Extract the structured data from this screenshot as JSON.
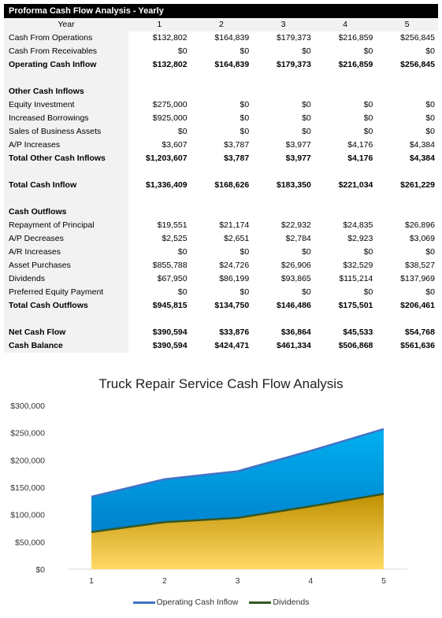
{
  "table": {
    "title": "Proforma Cash Flow Analysis - Yearly",
    "header": [
      "Year",
      "1",
      "2",
      "3",
      "4",
      "5"
    ],
    "rows": [
      {
        "label": "Cash From Operations",
        "values": [
          "$132,802",
          "$164,839",
          "$179,373",
          "$216,859",
          "$256,845"
        ],
        "style": "normal"
      },
      {
        "label": "Cash From Receivables",
        "values": [
          "$0",
          "$0",
          "$0",
          "$0",
          "$0"
        ],
        "style": "normal"
      },
      {
        "label": "Operating Cash Inflow",
        "values": [
          "$132,802",
          "$164,839",
          "$179,373",
          "$216,859",
          "$256,845"
        ],
        "style": "bold"
      },
      {
        "label": "",
        "values": [
          "",
          "",
          "",
          "",
          ""
        ],
        "style": "blank"
      },
      {
        "label": "Other Cash Inflows",
        "values": [
          "",
          "",
          "",
          "",
          ""
        ],
        "style": "section"
      },
      {
        "label": "Equity Investment",
        "values": [
          "$275,000",
          "$0",
          "$0",
          "$0",
          "$0"
        ],
        "style": "normal"
      },
      {
        "label": "Increased Borrowings",
        "values": [
          "$925,000",
          "$0",
          "$0",
          "$0",
          "$0"
        ],
        "style": "normal"
      },
      {
        "label": "Sales of Business Assets",
        "values": [
          "$0",
          "$0",
          "$0",
          "$0",
          "$0"
        ],
        "style": "normal"
      },
      {
        "label": "A/P Increases",
        "values": [
          "$3,607",
          "$3,787",
          "$3,977",
          "$4,176",
          "$4,384"
        ],
        "style": "normal"
      },
      {
        "label": "Total Other Cash Inflows",
        "values": [
          "$1,203,607",
          "$3,787",
          "$3,977",
          "$4,176",
          "$4,384"
        ],
        "style": "bold"
      },
      {
        "label": "",
        "values": [
          "",
          "",
          "",
          "",
          ""
        ],
        "style": "blank"
      },
      {
        "label": "Total Cash Inflow",
        "values": [
          "$1,336,409",
          "$168,626",
          "$183,350",
          "$221,034",
          "$261,229"
        ],
        "style": "bold"
      },
      {
        "label": "",
        "values": [
          "",
          "",
          "",
          "",
          ""
        ],
        "style": "blank"
      },
      {
        "label": "Cash Outflows",
        "values": [
          "",
          "",
          "",
          "",
          ""
        ],
        "style": "section"
      },
      {
        "label": "Repayment of Principal",
        "values": [
          "$19,551",
          "$21,174",
          "$22,932",
          "$24,835",
          "$26,896"
        ],
        "style": "normal"
      },
      {
        "label": "A/P Decreases",
        "values": [
          "$2,525",
          "$2,651",
          "$2,784",
          "$2,923",
          "$3,069"
        ],
        "style": "normal"
      },
      {
        "label": "A/R Increases",
        "values": [
          "$0",
          "$0",
          "$0",
          "$0",
          "$0"
        ],
        "style": "normal"
      },
      {
        "label": "Asset Purchases",
        "values": [
          "$855,788",
          "$24,726",
          "$26,906",
          "$32,529",
          "$38,527"
        ],
        "style": "normal"
      },
      {
        "label": "Dividends",
        "values": [
          "$67,950",
          "$86,199",
          "$93,865",
          "$115,214",
          "$137,969"
        ],
        "style": "normal"
      },
      {
        "label": "Preferred Equity Payment",
        "values": [
          "$0",
          "$0",
          "$0",
          "$0",
          "$0"
        ],
        "style": "normal"
      },
      {
        "label": "Total Cash Outflows",
        "values": [
          "$945,815",
          "$134,750",
          "$146,486",
          "$175,501",
          "$206,461"
        ],
        "style": "bold"
      },
      {
        "label": "",
        "values": [
          "",
          "",
          "",
          "",
          ""
        ],
        "style": "blank"
      },
      {
        "label": "Net Cash Flow",
        "values": [
          "$390,594",
          "$33,876",
          "$36,864",
          "$45,533",
          "$54,768"
        ],
        "style": "bold"
      },
      {
        "label": "Cash Balance",
        "values": [
          "$390,594",
          "$424,471",
          "$461,334",
          "$506,868",
          "$561,636"
        ],
        "style": "bold"
      }
    ]
  },
  "chart_data": {
    "type": "area",
    "title": "Truck Repair Service Cash Flow Analysis",
    "x": [
      1,
      2,
      3,
      4,
      5
    ],
    "ylim": [
      0,
      300000
    ],
    "yticks": [
      "$0",
      "$50,000",
      "$100,000",
      "$150,000",
      "$200,000",
      "$250,000",
      "$300,000"
    ],
    "ytick_values": [
      0,
      50000,
      100000,
      150000,
      200000,
      250000,
      300000
    ],
    "grid": false,
    "legend_position": "bottom",
    "series": [
      {
        "name": "Operating Cash Inflow",
        "values": [
          132802,
          164839,
          179373,
          216859,
          256845
        ],
        "line_color": "#4472c4",
        "fill_top": "#00b0f0",
        "fill_bottom": "#0070c0"
      },
      {
        "name": "Dividends",
        "values": [
          67950,
          86199,
          93865,
          115214,
          137969
        ],
        "line_color": "#375623",
        "fill_top": "#bf9000",
        "fill_bottom": "#ffd966"
      }
    ]
  }
}
